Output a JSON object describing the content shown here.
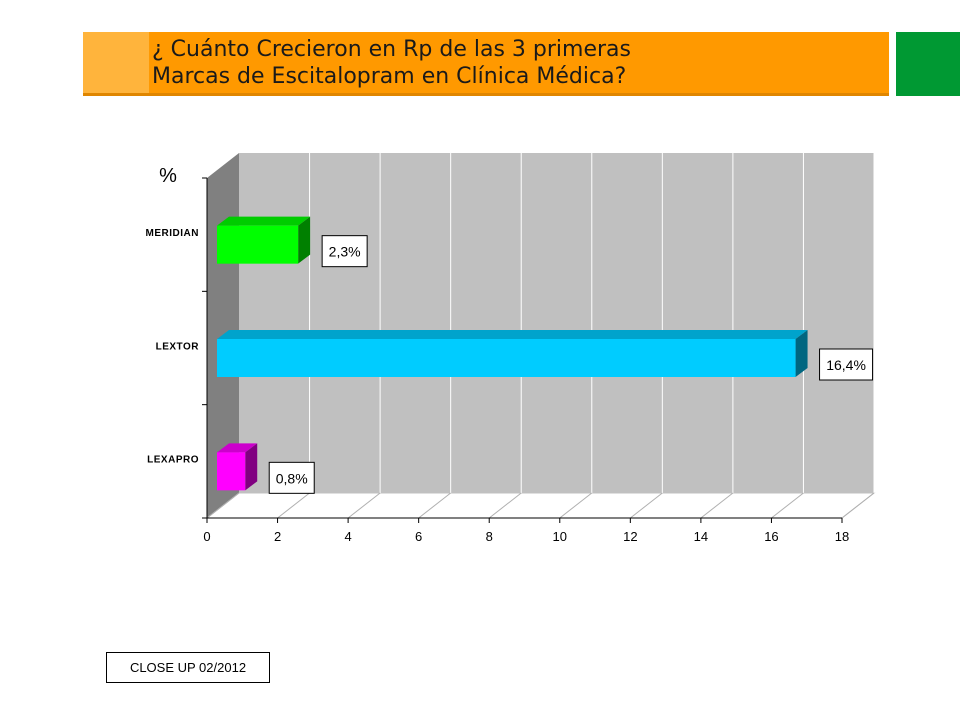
{
  "header": {
    "title_line1": "¿ Cuánto Crecieron en Rp de las 3 primeras",
    "title_line2": "Marcas de Escitalopram en Clínica Médica?"
  },
  "footer": {
    "source": "CLOSE UP 02/2012"
  },
  "colors": {
    "header_bar": "#ff9900",
    "header_accent": "#009933",
    "wall": "#c0c0c0",
    "floor": "#808080"
  },
  "chart_data": {
    "type": "bar",
    "orientation": "horizontal",
    "three_d": true,
    "ylabel": "%",
    "categories": [
      "MERIDIAN",
      "LEXTOR",
      "LEXAPRO"
    ],
    "values": [
      2.3,
      16.4,
      0.8
    ],
    "data_labels": [
      "2,3%",
      "16,4%",
      "0,8%"
    ],
    "bar_colors": [
      "#00ff00",
      "#00ccff",
      "#ff00ff"
    ],
    "xlim": [
      0,
      18
    ],
    "xticks": [
      0,
      2,
      4,
      6,
      8,
      10,
      12,
      14,
      16,
      18
    ],
    "grid": true
  }
}
